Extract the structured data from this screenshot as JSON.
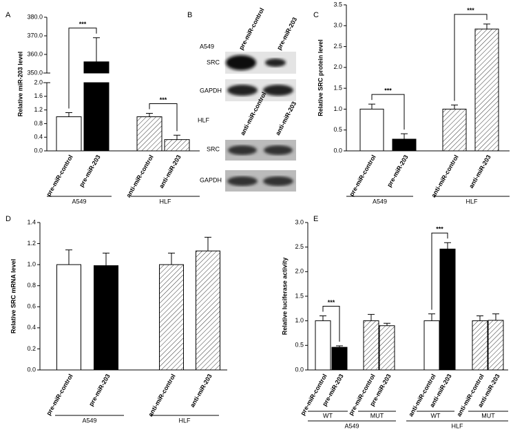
{
  "chart_data": [
    {
      "type": "bar",
      "label": "A",
      "ylabel": "Relative miR-203 level",
      "ylim": [
        0,
        380
      ],
      "ybreak": [
        2,
        350
      ],
      "yticks": [
        {
          "value": 0,
          "label": "0.0"
        },
        0.4,
        0.8,
        1.2,
        1.6,
        {
          "value": 2,
          "label": "2.0"
        },
        {
          "value": 350,
          "label": "350.0"
        },
        {
          "value": 360,
          "label": "360.0"
        },
        {
          "value": 370,
          "label": "370.0"
        },
        {
          "value": 380,
          "label": "380.0"
        }
      ],
      "categories": [
        "pre-miR-control",
        "pre-miR-203",
        "anti-miR-control",
        "anti-miR-203"
      ],
      "values": [
        1.0,
        356,
        1.0,
        0.33
      ],
      "errors": [
        0.12,
        13,
        0.1,
        0.13
      ],
      "colors": [
        "#ffffff",
        "#000000",
        "hatch",
        "hatch"
      ],
      "annotations": [
        "***",
        "***"
      ],
      "groups": [
        "A549",
        "HLF"
      ]
    },
    {
      "type": "bar",
      "label": "C",
      "ylabel": "Relative SRC protein level",
      "ylim": [
        0,
        3.5
      ],
      "yticks": [
        {
          "value": 0,
          "label": "0.0"
        },
        0.5,
        {
          "value": 1,
          "label": "1.0"
        },
        1.5,
        {
          "value": 2,
          "label": "2.0"
        },
        2.5,
        {
          "value": 3,
          "label": "3.0"
        },
        3.5
      ],
      "categories": [
        "pre-miR-control",
        "pre-miR-203",
        "anti-miR-control",
        "anti-miR-203"
      ],
      "values": [
        1.0,
        0.28,
        1.0,
        2.92
      ],
      "errors": [
        0.12,
        0.13,
        0.1,
        0.12
      ],
      "colors": [
        "#ffffff",
        "#000000",
        "hatch",
        "hatch"
      ],
      "annotations": [
        "***",
        "***"
      ],
      "groups": [
        "A549",
        "HLF"
      ]
    },
    {
      "type": "bar",
      "label": "D",
      "ylabel": "Relative SRC mRNA level",
      "ylim": [
        0,
        1.4
      ],
      "yticks": [
        {
          "value": 0,
          "label": "0.0"
        },
        0.2,
        0.4,
        0.6,
        0.8,
        {
          "value": 1,
          "label": "1.0"
        },
        1.2,
        1.4
      ],
      "categories": [
        "pre-miR-control",
        "pre-miR-203",
        "anti-miR-control",
        "anti-miR-203"
      ],
      "values": [
        1.0,
        0.99,
        1.0,
        1.13
      ],
      "errors": [
        0.14,
        0.12,
        0.11,
        0.13
      ],
      "colors": [
        "#ffffff",
        "#000000",
        "hatch",
        "hatch"
      ],
      "groups": [
        "A549",
        "HLF"
      ]
    },
    {
      "type": "bar",
      "label": "E",
      "ylabel": "Relative luciferase activity",
      "ylim": [
        0,
        3.0
      ],
      "yticks": [
        {
          "value": 0,
          "label": "0.0"
        },
        0.5,
        {
          "value": 1,
          "label": "1.0"
        },
        1.5,
        {
          "value": 2,
          "label": "2.0"
        },
        2.5,
        {
          "value": 3,
          "label": "3.0"
        }
      ],
      "categories": [
        "pre-miR-control",
        "pre-miR-203",
        "pre-miR-control",
        "pre-miR-203",
        "anti-miR-control",
        "anti-miR-203",
        "anti-miR-control",
        "anti-miR-203"
      ],
      "values": [
        1.0,
        0.46,
        1.0,
        0.9,
        1.0,
        2.46,
        1.0,
        1.01
      ],
      "errors": [
        0.1,
        0.03,
        0.13,
        0.05,
        0.14,
        0.13,
        0.1,
        0.13
      ],
      "colors": [
        "#ffffff",
        "#000000",
        "hatch",
        "hatch",
        "#ffffff",
        "#000000",
        "hatch",
        "hatch"
      ],
      "annotations": [
        "***",
        "***"
      ],
      "subgroups": [
        "WT",
        "MUT",
        "WT",
        "MUT"
      ],
      "groups": [
        "A549",
        "HLF"
      ]
    }
  ],
  "blot": {
    "label": "B",
    "top": {
      "cell": "A549",
      "lanes": [
        "pre-miR-control",
        "pre-miR-203"
      ],
      "rows": [
        "SRC",
        "GAPDH"
      ]
    },
    "bottom": {
      "cell": "HLF",
      "lanes": [
        "anti-miR-control",
        "anti-miR-203"
      ],
      "rows": [
        "SRC",
        "GAPDH"
      ]
    }
  }
}
